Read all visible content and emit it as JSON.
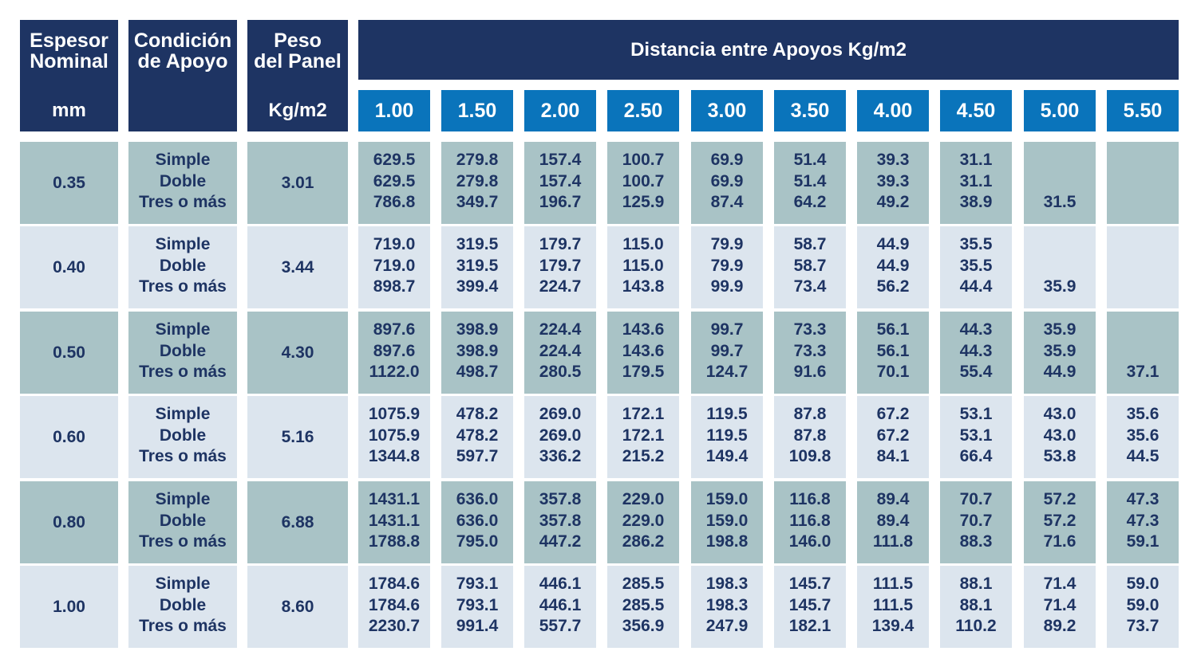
{
  "header": {
    "espesor": {
      "line1": "Espesor",
      "line2": "Nominal",
      "unit": "mm"
    },
    "condicion": {
      "line1": "Condición",
      "line2": "de Apoyo"
    },
    "peso": {
      "line1": "Peso",
      "line2": "del Panel",
      "unit": "Kg/m2"
    },
    "distancia_title": "Distancia entre Apoyos Kg/m2",
    "distances": [
      "1.00",
      "1.50",
      "2.00",
      "2.50",
      "3.00",
      "3.50",
      "4.00",
      "4.50",
      "5.00",
      "5.50"
    ]
  },
  "conditions": [
    "Simple",
    "Doble",
    "Tres o más"
  ],
  "rows": [
    {
      "espesor": "0.35",
      "peso": "3.01",
      "values": [
        [
          "629.5",
          "629.5",
          "786.8"
        ],
        [
          "279.8",
          "279.8",
          "349.7"
        ],
        [
          "157.4",
          "157.4",
          "196.7"
        ],
        [
          "100.7",
          "100.7",
          "125.9"
        ],
        [
          "69.9",
          "69.9",
          "87.4"
        ],
        [
          "51.4",
          "51.4",
          "64.2"
        ],
        [
          "39.3",
          "39.3",
          "49.2"
        ],
        [
          "31.1",
          "31.1",
          "38.9"
        ],
        [
          "",
          "",
          "31.5"
        ],
        [
          "",
          "",
          ""
        ]
      ]
    },
    {
      "espesor": "0.40",
      "peso": "3.44",
      "values": [
        [
          "719.0",
          "719.0",
          "898.7"
        ],
        [
          "319.5",
          "319.5",
          "399.4"
        ],
        [
          "179.7",
          "179.7",
          "224.7"
        ],
        [
          "115.0",
          "115.0",
          "143.8"
        ],
        [
          "79.9",
          "79.9",
          "99.9"
        ],
        [
          "58.7",
          "58.7",
          "73.4"
        ],
        [
          "44.9",
          "44.9",
          "56.2"
        ],
        [
          "35.5",
          "35.5",
          "44.4"
        ],
        [
          "",
          "",
          "35.9"
        ],
        [
          "",
          "",
          ""
        ]
      ]
    },
    {
      "espesor": "0.50",
      "peso": "4.30",
      "values": [
        [
          "897.6",
          "897.6",
          "1122.0"
        ],
        [
          "398.9",
          "398.9",
          "498.7"
        ],
        [
          "224.4",
          "224.4",
          "280.5"
        ],
        [
          "143.6",
          "143.6",
          "179.5"
        ],
        [
          "99.7",
          "99.7",
          "124.7"
        ],
        [
          "73.3",
          "73.3",
          "91.6"
        ],
        [
          "56.1",
          "56.1",
          "70.1"
        ],
        [
          "44.3",
          "44.3",
          "55.4"
        ],
        [
          "35.9",
          "35.9",
          "44.9"
        ],
        [
          "",
          "",
          "37.1"
        ]
      ]
    },
    {
      "espesor": "0.60",
      "peso": "5.16",
      "values": [
        [
          "1075.9",
          "1075.9",
          "1344.8"
        ],
        [
          "478.2",
          "478.2",
          "597.7"
        ],
        [
          "269.0",
          "269.0",
          "336.2"
        ],
        [
          "172.1",
          "172.1",
          "215.2"
        ],
        [
          "119.5",
          "119.5",
          "149.4"
        ],
        [
          "87.8",
          "87.8",
          "109.8"
        ],
        [
          "67.2",
          "67.2",
          "84.1"
        ],
        [
          "53.1",
          "53.1",
          "66.4"
        ],
        [
          "43.0",
          "43.0",
          "53.8"
        ],
        [
          "35.6",
          "35.6",
          "44.5"
        ]
      ]
    },
    {
      "espesor": "0.80",
      "peso": "6.88",
      "values": [
        [
          "1431.1",
          "1431.1",
          "1788.8"
        ],
        [
          "636.0",
          "636.0",
          "795.0"
        ],
        [
          "357.8",
          "357.8",
          "447.2"
        ],
        [
          "229.0",
          "229.0",
          "286.2"
        ],
        [
          "159.0",
          "159.0",
          "198.8"
        ],
        [
          "116.8",
          "116.8",
          "146.0"
        ],
        [
          "89.4",
          "89.4",
          "111.8"
        ],
        [
          "70.7",
          "70.7",
          "88.3"
        ],
        [
          "57.2",
          "57.2",
          "71.6"
        ],
        [
          "47.3",
          "47.3",
          "59.1"
        ]
      ]
    },
    {
      "espesor": "1.00",
      "peso": "8.60",
      "values": [
        [
          "1784.6",
          "1784.6",
          "2230.7"
        ],
        [
          "793.1",
          "793.1",
          "991.4"
        ],
        [
          "446.1",
          "446.1",
          "557.7"
        ],
        [
          "285.5",
          "285.5",
          "356.9"
        ],
        [
          "198.3",
          "198.3",
          "247.9"
        ],
        [
          "145.7",
          "145.7",
          "182.1"
        ],
        [
          "111.5",
          "111.5",
          "139.4"
        ],
        [
          "88.1",
          "88.1",
          "110.2"
        ],
        [
          "71.4",
          "71.4",
          "89.2"
        ],
        [
          "59.0",
          "59.0",
          "73.7"
        ]
      ]
    }
  ],
  "colors": {
    "navy": "#1e3463",
    "blue": "#0a74bb",
    "row_dark": "#a9c3c6",
    "row_light": "#dce5ee"
  }
}
